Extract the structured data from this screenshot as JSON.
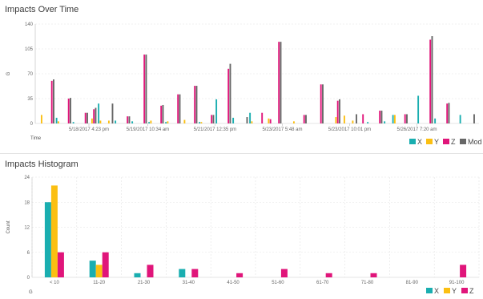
{
  "colors": {
    "X": "#1aaeb0",
    "Y": "#fbbf12",
    "Z": "#e0157a",
    "Mod": "#666666"
  },
  "chart_data": [
    {
      "type": "bar",
      "title": "Impacts Over Time",
      "xlabel": "Time",
      "ylabel": "G",
      "ylim": [
        0,
        140
      ],
      "yticks": [
        "0",
        "35",
        "70",
        "105",
        "140"
      ],
      "grid": true,
      "legend": "bottom-right",
      "series_names": [
        "X",
        "Y",
        "Z",
        "Mod"
      ],
      "date_ticks": [
        {
          "label": "5/18/2017 4:23 pm",
          "after_group": 6
        },
        {
          "label": "5/19/2017 10:34 am",
          "after_group": 13
        },
        {
          "label": "5/21/2017 12:35 pm",
          "after_group": 21
        },
        {
          "label": "5/23/2017 5:48 am",
          "after_group": 29
        },
        {
          "label": "5/23/2017 10:01 pm",
          "after_group": 37
        },
        {
          "label": "5/26/2017 7:20 am",
          "after_group": 45
        }
      ],
      "groups": [
        [
          0,
          12,
          0,
          0
        ],
        [
          0,
          0,
          60,
          62
        ],
        [
          8,
          3,
          0,
          0
        ],
        [
          0,
          0,
          35,
          36
        ],
        [
          2,
          0,
          0,
          0
        ],
        [
          0,
          0,
          15,
          15
        ],
        [
          0,
          7,
          20,
          22
        ],
        [
          28,
          4,
          0,
          0
        ],
        [
          0,
          4,
          0,
          28
        ],
        [
          4,
          0,
          0,
          0
        ],
        [
          0,
          0,
          10,
          10
        ],
        [
          3,
          0,
          0,
          0
        ],
        [
          0,
          0,
          97,
          97
        ],
        [
          2,
          4,
          0,
          0
        ],
        [
          0,
          0,
          25,
          26
        ],
        [
          2,
          3,
          0,
          0
        ],
        [
          0,
          0,
          41,
          41
        ],
        [
          0,
          5,
          0,
          0
        ],
        [
          0,
          0,
          53,
          53
        ],
        [
          2,
          2,
          0,
          0
        ],
        [
          0,
          0,
          12,
          12
        ],
        [
          34,
          0,
          0,
          0
        ],
        [
          0,
          0,
          77,
          84
        ],
        [
          8,
          0,
          0,
          0
        ],
        [
          0,
          0,
          0,
          9
        ],
        [
          15,
          3,
          0,
          0
        ],
        [
          0,
          0,
          15,
          0
        ],
        [
          0,
          7,
          6,
          0
        ],
        [
          0,
          0,
          115,
          115
        ],
        [
          0,
          0,
          0,
          0
        ],
        [
          0,
          3,
          0,
          0
        ],
        [
          0,
          0,
          12,
          12
        ],
        [
          0,
          0,
          0,
          0
        ],
        [
          0,
          0,
          55,
          55
        ],
        [
          0,
          0,
          0,
          0
        ],
        [
          0,
          9,
          32,
          34
        ],
        [
          0,
          11,
          0,
          0
        ],
        [
          0,
          4,
          0,
          13
        ],
        [
          0,
          0,
          13,
          0
        ],
        [
          2,
          0,
          0,
          0
        ],
        [
          0,
          0,
          18,
          18
        ],
        [
          3,
          0,
          0,
          0
        ],
        [
          12,
          12,
          0,
          0
        ],
        [
          0,
          0,
          13,
          13
        ],
        [
          0,
          0,
          0,
          0
        ],
        [
          39,
          0,
          0,
          0
        ],
        [
          0,
          0,
          118,
          123
        ],
        [
          7,
          0,
          0,
          0
        ],
        [
          0,
          0,
          28,
          29
        ],
        [
          0,
          0,
          0,
          0
        ],
        [
          12,
          0,
          0,
          0
        ],
        [
          0,
          0,
          0,
          13
        ]
      ]
    },
    {
      "type": "bar",
      "title": "Impacts Histogram",
      "xlabel": "G",
      "ylabel": "Count",
      "ylim": [
        0,
        24
      ],
      "yticks": [
        "0",
        "6",
        "12",
        "18",
        "24"
      ],
      "grid": true,
      "legend": "bottom-right",
      "categories": [
        "< 10",
        "11-20",
        "21-30",
        "31-40",
        "41-50",
        "51-60",
        "61-70",
        "71-80",
        "81-90",
        "91-100"
      ],
      "series": [
        {
          "name": "X",
          "values": [
            18,
            4,
            1,
            2,
            0,
            0,
            0,
            0,
            0,
            0
          ]
        },
        {
          "name": "Y",
          "values": [
            22,
            3,
            0,
            0,
            0,
            0,
            0,
            0,
            0,
            0
          ]
        },
        {
          "name": "Z",
          "values": [
            6,
            6,
            3,
            2,
            1,
            2,
            1,
            1,
            0,
            3
          ]
        }
      ]
    }
  ]
}
